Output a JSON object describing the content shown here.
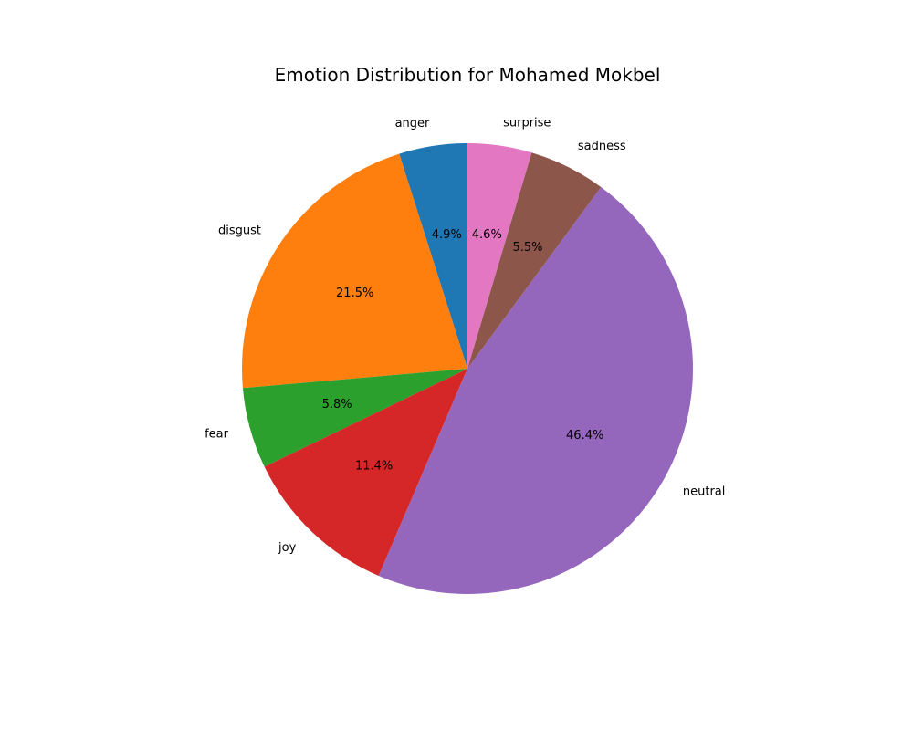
{
  "chart_data": {
    "type": "pie",
    "title": "Emotion Distribution for Mohamed Mokbel",
    "start_angle_deg": 90,
    "direction": "counterclockwise",
    "slices": [
      {
        "label": "anger",
        "value": 4.9,
        "pct_label": "4.9%",
        "color": "#1f77b4"
      },
      {
        "label": "disgust",
        "value": 21.5,
        "pct_label": "21.5%",
        "color": "#ff7f0e"
      },
      {
        "label": "fear",
        "value": 5.8,
        "pct_label": "5.8%",
        "color": "#2ca02c"
      },
      {
        "label": "joy",
        "value": 11.4,
        "pct_label": "11.4%",
        "color": "#d62728"
      },
      {
        "label": "neutral",
        "value": 46.4,
        "pct_label": "46.4%",
        "color": "#9467bd"
      },
      {
        "label": "sadness",
        "value": 5.5,
        "pct_label": "5.5%",
        "color": "#8c564b"
      },
      {
        "label": "surprise",
        "value": 4.6,
        "pct_label": "4.6%",
        "color": "#e377c2"
      }
    ]
  }
}
